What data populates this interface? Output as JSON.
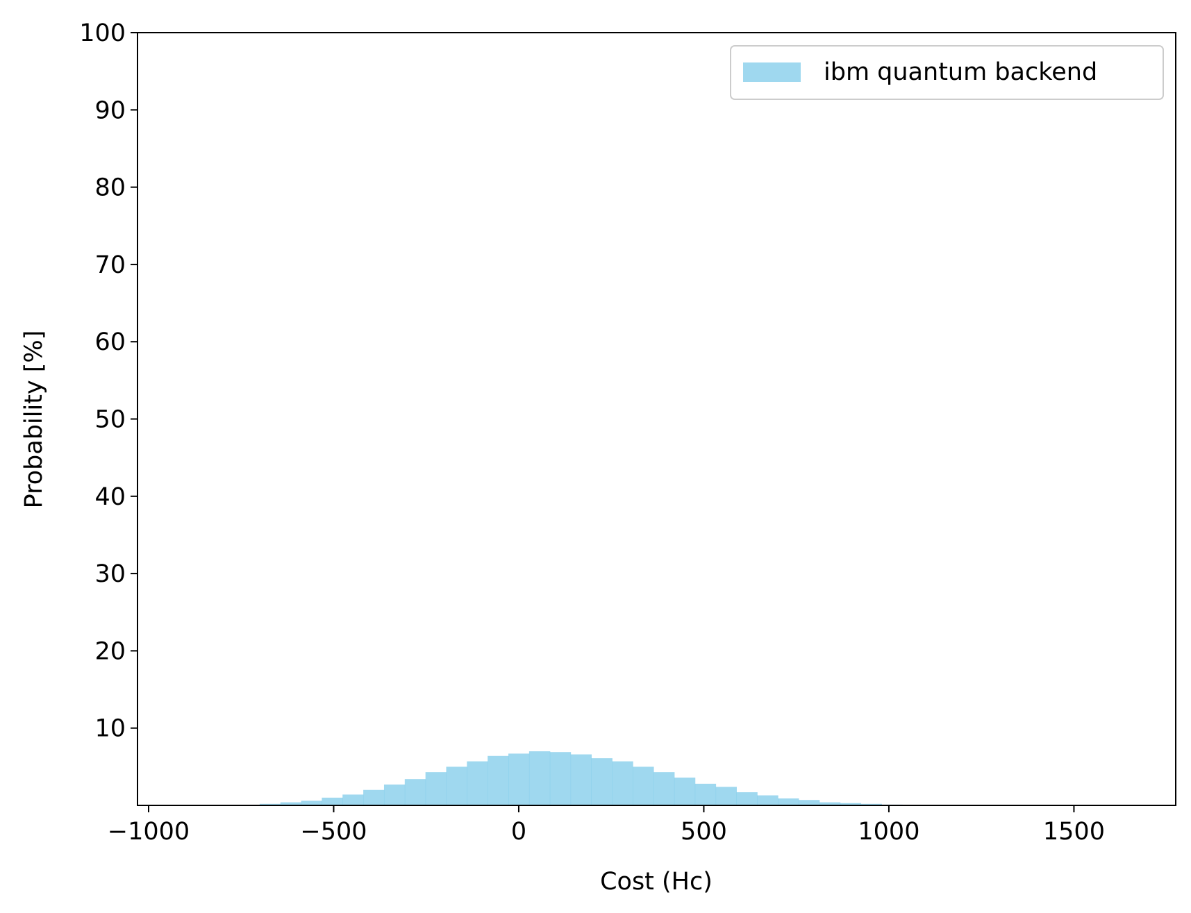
{
  "chart_data": {
    "type": "bar",
    "title": "",
    "xlabel": "Cost (Hc)",
    "ylabel": "Probability [%]",
    "xlim": [
      -1030,
      1775
    ],
    "ylim": [
      0,
      100
    ],
    "xticks": [
      -1000,
      -500,
      0,
      500,
      1000,
      1500
    ],
    "xtick_labels": [
      "−1000",
      "−500",
      "0",
      "500",
      "1000",
      "1500"
    ],
    "yticks": [
      10,
      20,
      30,
      40,
      50,
      60,
      70,
      80,
      90,
      100
    ],
    "ytick_labels": [
      "10",
      "20",
      "30",
      "40",
      "50",
      "60",
      "70",
      "80",
      "90",
      "100"
    ],
    "grid": false,
    "legend": {
      "position": "top-right"
    },
    "series": [
      {
        "name": "ibm quantum backend",
        "color": "#87ceeb",
        "opacity": 0.8,
        "bins": [
          {
            "x0": -700,
            "x1": -644,
            "value": 0.2
          },
          {
            "x0": -644,
            "x1": -588,
            "value": 0.4
          },
          {
            "x0": -588,
            "x1": -532,
            "value": 0.6
          },
          {
            "x0": -532,
            "x1": -476,
            "value": 1.0
          },
          {
            "x0": -476,
            "x1": -420,
            "value": 1.4
          },
          {
            "x0": -420,
            "x1": -364,
            "value": 2.0
          },
          {
            "x0": -364,
            "x1": -308,
            "value": 2.7
          },
          {
            "x0": -308,
            "x1": -252,
            "value": 3.4
          },
          {
            "x0": -252,
            "x1": -196,
            "value": 4.3
          },
          {
            "x0": -196,
            "x1": -140,
            "value": 5.0
          },
          {
            "x0": -140,
            "x1": -84,
            "value": 5.7
          },
          {
            "x0": -84,
            "x1": -28,
            "value": 6.4
          },
          {
            "x0": -28,
            "x1": 28,
            "value": 6.7
          },
          {
            "x0": 28,
            "x1": 84,
            "value": 7.0
          },
          {
            "x0": 84,
            "x1": 140,
            "value": 6.9
          },
          {
            "x0": 140,
            "x1": 196,
            "value": 6.6
          },
          {
            "x0": 196,
            "x1": 252,
            "value": 6.1
          },
          {
            "x0": 252,
            "x1": 308,
            "value": 5.7
          },
          {
            "x0": 308,
            "x1": 364,
            "value": 5.0
          },
          {
            "x0": 364,
            "x1": 420,
            "value": 4.3
          },
          {
            "x0": 420,
            "x1": 476,
            "value": 3.6
          },
          {
            "x0": 476,
            "x1": 532,
            "value": 2.8
          },
          {
            "x0": 532,
            "x1": 588,
            "value": 2.4
          },
          {
            "x0": 588,
            "x1": 644,
            "value": 1.7
          },
          {
            "x0": 644,
            "x1": 700,
            "value": 1.3
          },
          {
            "x0": 700,
            "x1": 756,
            "value": 0.9
          },
          {
            "x0": 756,
            "x1": 812,
            "value": 0.7
          },
          {
            "x0": 812,
            "x1": 868,
            "value": 0.4
          },
          {
            "x0": 868,
            "x1": 924,
            "value": 0.3
          },
          {
            "x0": 924,
            "x1": 980,
            "value": 0.2
          },
          {
            "x0": 980,
            "x1": 1036,
            "value": 0.1
          }
        ]
      }
    ]
  }
}
